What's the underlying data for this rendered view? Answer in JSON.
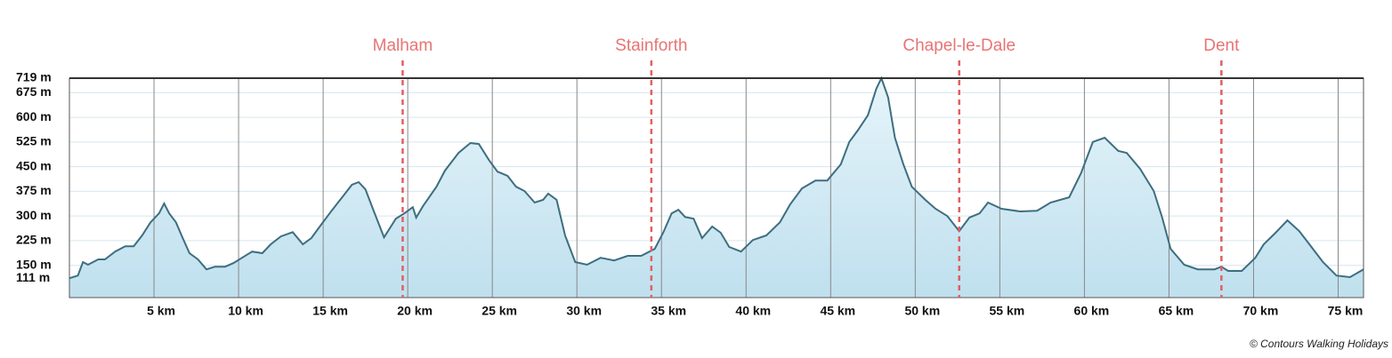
{
  "chart_data": {
    "type": "area",
    "x": [
      0,
      0.5,
      0.8,
      1.1,
      1.7,
      2.1,
      2.7,
      3.3,
      3.8,
      4.3,
      4.8,
      5.3,
      5.6,
      5.9,
      6.3,
      6.7,
      7.1,
      7.6,
      8.1,
      8.6,
      9.2,
      9.7,
      10.2,
      10.8,
      11.4,
      11.9,
      12.5,
      13.2,
      13.8,
      14.3,
      14.8,
      15.5,
      16.2,
      16.7,
      17.1,
      17.5,
      18.0,
      18.6,
      19.3,
      19.8,
      20.3,
      20.5,
      20.9,
      21.7,
      22.2,
      23.0,
      23.7,
      24.2,
      24.8,
      25.3,
      25.9,
      26.4,
      26.9,
      27.5,
      28.0,
      28.3,
      28.8,
      29.3,
      29.9,
      30.6,
      31.4,
      32.2,
      33.0,
      33.8,
      34.6,
      35.1,
      35.6,
      36.0,
      36.4,
      36.9,
      37.4,
      38.0,
      38.5,
      39.0,
      39.7,
      40.4,
      41.2,
      42.0,
      42.6,
      43.3,
      44.1,
      44.8,
      45.6,
      46.1,
      46.6,
      47.2,
      47.7,
      48.0,
      48.4,
      48.8,
      49.3,
      49.8,
      50.6,
      51.2,
      51.9,
      52.6,
      53.2,
      53.8,
      54.3,
      55.1,
      56.2,
      57.2,
      58.0,
      59.1,
      59.8,
      60.5,
      61.2,
      62.0,
      62.5,
      63.3,
      64.1,
      64.6,
      65.1,
      65.9,
      66.7,
      67.7,
      68.1,
      68.5,
      69.3,
      70.1,
      70.6,
      71.3,
      72.0,
      72.7,
      73.3,
      74.1,
      74.9,
      75.7,
      76.5
    ],
    "y": [
      111,
      119,
      160,
      152,
      168,
      168,
      192,
      208,
      208,
      241,
      281,
      308,
      338,
      308,
      281,
      233,
      187,
      168,
      138,
      146,
      146,
      157,
      173,
      192,
      187,
      214,
      238,
      251,
      214,
      233,
      268,
      316,
      362,
      395,
      403,
      381,
      314,
      235,
      292,
      308,
      327,
      295,
      330,
      389,
      438,
      492,
      522,
      519,
      470,
      435,
      422,
      389,
      376,
      341,
      349,
      368,
      349,
      241,
      160,
      152,
      173,
      165,
      179,
      179,
      200,
      249,
      308,
      319,
      297,
      292,
      233,
      268,
      249,
      206,
      192,
      227,
      241,
      281,
      335,
      384,
      408,
      408,
      457,
      525,
      560,
      606,
      687,
      719,
      660,
      538,
      457,
      389,
      349,
      322,
      300,
      254,
      295,
      308,
      341,
      322,
      314,
      316,
      341,
      357,
      430,
      525,
      538,
      498,
      492,
      443,
      376,
      295,
      200,
      152,
      138,
      138,
      146,
      133,
      133,
      173,
      214,
      249,
      287,
      254,
      214,
      160,
      119,
      114,
      138
    ],
    "color": "#3d6e80",
    "fill": "#bfe0ee",
    "xlim": [
      0,
      76.5
    ],
    "ylim": [
      52,
      719
    ],
    "xticks": [
      {
        "value": 5,
        "label": "5 km"
      },
      {
        "value": 10,
        "label": "10 km"
      },
      {
        "value": 15,
        "label": "15 km"
      },
      {
        "value": 20,
        "label": "20 km"
      },
      {
        "value": 25,
        "label": "25 km"
      },
      {
        "value": 30,
        "label": "30 km"
      },
      {
        "value": 35,
        "label": "35 km"
      },
      {
        "value": 40,
        "label": "40 km"
      },
      {
        "value": 45,
        "label": "45 km"
      },
      {
        "value": 50,
        "label": "50 km"
      },
      {
        "value": 55,
        "label": "55 km"
      },
      {
        "value": 60,
        "label": "60 km"
      },
      {
        "value": 65,
        "label": "65 km"
      },
      {
        "value": 70,
        "label": "70 km"
      },
      {
        "value": 75,
        "label": "75 km"
      }
    ],
    "yticks": [
      {
        "value": 111,
        "label": "111 m"
      },
      {
        "value": 150,
        "label": "150 m"
      },
      {
        "value": 225,
        "label": "225 m"
      },
      {
        "value": 300,
        "label": "300 m"
      },
      {
        "value": 375,
        "label": "375 m"
      },
      {
        "value": 450,
        "label": "450 m"
      },
      {
        "value": 525,
        "label": "525 m"
      },
      {
        "value": 600,
        "label": "600 m"
      },
      {
        "value": 675,
        "label": "675 m"
      },
      {
        "value": 719,
        "label": "719 m"
      }
    ],
    "grid": true,
    "annotations": [
      {
        "label": "Malham",
        "x": 19.7
      },
      {
        "label": "Stainforth",
        "x": 34.4
      },
      {
        "label": "Chapel-le-Dale",
        "x": 52.6
      },
      {
        "label": "Dent",
        "x": 68.1
      }
    ],
    "annotation_color": "#e06060",
    "credit": "© Contours Walking Holidays"
  }
}
